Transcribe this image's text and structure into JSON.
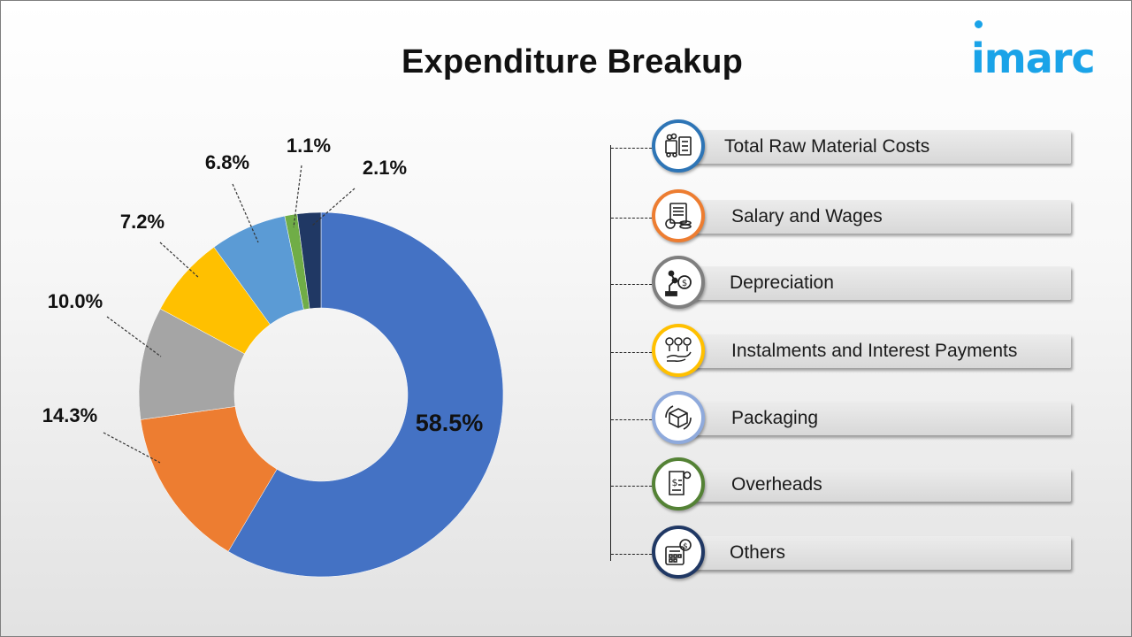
{
  "title": "Expenditure Breakup",
  "logo_text": "imarc",
  "colors": {
    "accent": "#1aa3e8"
  },
  "chart_data": {
    "type": "pie",
    "title": "Expenditure Breakup",
    "donut": true,
    "slices": [
      {
        "name": "Total Raw Material Costs",
        "value": 58.5,
        "label": "58.5%",
        "color": "#4472c4"
      },
      {
        "name": "Salary and Wages",
        "value": 14.3,
        "label": "14.3%",
        "color": "#ed7d31"
      },
      {
        "name": "Depreciation",
        "value": 10.0,
        "label": "10.0%",
        "color": "#a5a5a5"
      },
      {
        "name": "Instalments and Interest Payments",
        "value": 7.2,
        "label": "7.2%",
        "color": "#ffc000"
      },
      {
        "name": "Packaging",
        "value": 6.8,
        "label": "6.8%",
        "color": "#5b9bd5"
      },
      {
        "name": "Overheads",
        "value": 1.1,
        "label": "1.1%",
        "color": "#70ad47"
      },
      {
        "name": "Others",
        "value": 2.1,
        "label": "2.1%",
        "color": "#203864"
      }
    ]
  },
  "legend": [
    {
      "label": "Total Raw Material Costs",
      "icon": "raw-material-icon",
      "ring": "#2e75b6"
    },
    {
      "label": "Salary and Wages",
      "icon": "salary-icon",
      "ring": "#ed7d31"
    },
    {
      "label": "Depreciation",
      "icon": "depreciation-icon",
      "ring": "#7f7f7f"
    },
    {
      "label": "Instalments and Interest Payments",
      "icon": "interest-icon",
      "ring": "#ffc000"
    },
    {
      "label": "Packaging",
      "icon": "packaging-icon",
      "ring": "#8faadc"
    },
    {
      "label": "Overheads",
      "icon": "overheads-icon",
      "ring": "#548235"
    },
    {
      "label": "Others",
      "icon": "others-icon",
      "ring": "#203864"
    }
  ]
}
